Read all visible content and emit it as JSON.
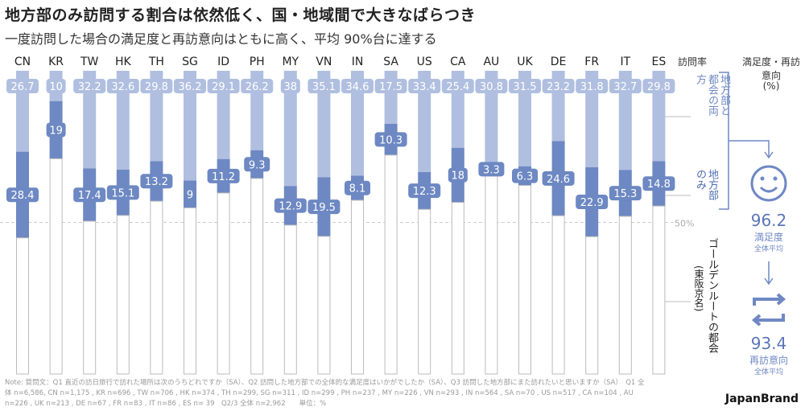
{
  "title": "地方部のみ訪問する割合は依然低く、国・地域間で大きなばらつき",
  "subtitle": "一度訪問した場合の満足度と再訪意向はともに高く、平均 90%台に達する",
  "chart_data": {
    "type": "bar",
    "stacked": true,
    "categories": [
      "CN",
      "KR",
      "TW",
      "HK",
      "TH",
      "SG",
      "ID",
      "PH",
      "MY",
      "VN",
      "IN",
      "SA",
      "US",
      "CA",
      "AU",
      "UK",
      "DE",
      "FR",
      "IT",
      "ES"
    ],
    "series": [
      {
        "name": "地方部と都会の両方",
        "color": "#b0bfe0",
        "values": [
          26.7,
          10,
          32.2,
          32.6,
          29.8,
          36.2,
          29.1,
          26.2,
          38,
          35.1,
          34.6,
          17.5,
          33.4,
          25.4,
          30.8,
          31.5,
          23.2,
          31.8,
          32.7,
          29.8
        ]
      },
      {
        "name": "地方部のみ",
        "color": "#6d88c2",
        "values": [
          28.4,
          19,
          17.4,
          15.1,
          13.2,
          9,
          11.2,
          9.3,
          12.9,
          19.5,
          8.1,
          10.3,
          12.3,
          18,
          3.3,
          6.3,
          24.6,
          22.9,
          15.3,
          14.8
        ]
      },
      {
        "name": "ゴールデンルートの都会（東阪京名）",
        "color": "#ffffff"
      }
    ],
    "ylim": [
      0,
      100
    ],
    "reference_line": {
      "value": 50,
      "label": "50%"
    }
  },
  "legend": {
    "visit_rate_header": "訪問率",
    "satisfaction_header": "満足度・再訪意向",
    "satisfaction_unit": "(%)",
    "both_label": "地方部と都会の両方",
    "local_only_label": "地方部のみ",
    "golden_label": "ゴールデンルートの都会",
    "golden_sub": "(東阪京名)"
  },
  "summary": {
    "satisfaction_value": "96.2",
    "satisfaction_label": "満足度",
    "satisfaction_sub": "全体平均",
    "revisit_value": "93.4",
    "revisit_label": "再訪意向",
    "revisit_sub": "全体平均",
    "smile_icon": "smile-icon",
    "repeat_icon": "repeat-icon"
  },
  "note": "Note: 質問文：Q1 直近の訪日旅行で訪れた場所は次のうちどれですか（SA）、Q2 訪問した地方部での全体的な満足度はいかがでしたか（SA）、Q3 訪問した地方部にまた訪れたいと思いますか（SA）　Q1 全体 n=6,586, CN n=1,175 , KR n=696 , TW n=706 , HK n=374 , TH n=299, SG n=311 , ID n=299 , PH n=237 , MY n=226 , VN n=293 , IN n=564 , SA n=70 , US n=517 , CA n=104 , AU n=226 , UK n=213 , DE n=67 , FR n=83 , IT n=86 , ES n= 39　Q2/3 全体 n=2,962　　単位：%",
  "brand": "JapanBrand"
}
